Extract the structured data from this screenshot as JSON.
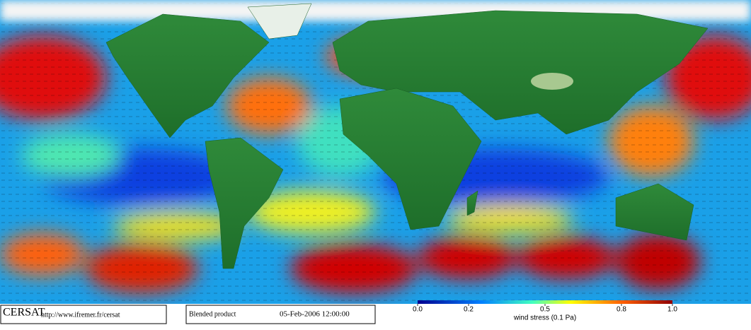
{
  "footer": {
    "logo": "CERSAT",
    "url": "http://www.ifremer.fr/cersat",
    "product": "Blended product",
    "date": "05-Feb-2006 12:00:00"
  },
  "colorbar": {
    "label": "wind stress (0.1 Pa)",
    "range": [
      0,
      1
    ],
    "ticks": [
      {
        "value": 0,
        "label": "0.0"
      },
      0.2,
      0.5,
      0.8,
      {
        "value": 1,
        "label": "1.0"
      }
    ]
  }
}
